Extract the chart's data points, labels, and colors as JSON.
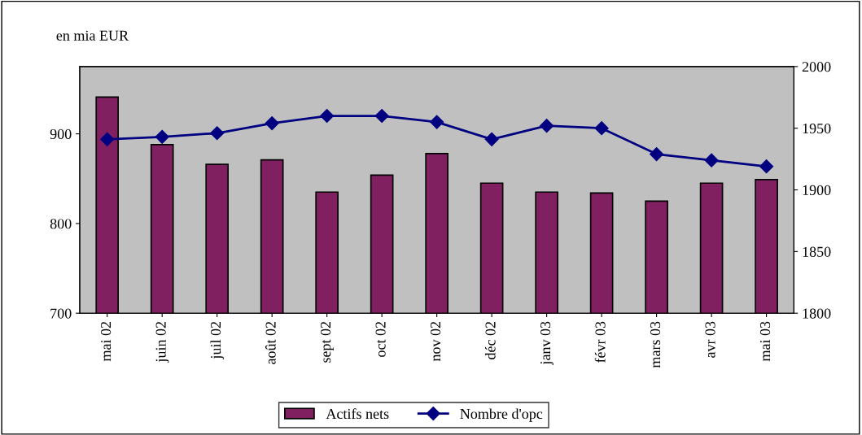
{
  "chart_data": {
    "type": "bar",
    "ylabel": "en mia EUR",
    "categories": [
      "mai 02",
      "juin 02",
      "juil 02",
      "août 02",
      "sept 02",
      "oct 02",
      "nov 02",
      "déc 02",
      "janv 03",
      "févr 03",
      "mars 03",
      "avr 03",
      "mai 03"
    ],
    "series": [
      {
        "name": "Actifs nets",
        "color": "#802060",
        "values": [
          941,
          888,
          866,
          871,
          835,
          854,
          878,
          845,
          835,
          834,
          825,
          845,
          849
        ]
      },
      {
        "name": "Nombre d'opc",
        "type": "line",
        "axis": "y2",
        "color": "#000080",
        "marker": "diamond",
        "values": [
          1941,
          1943,
          1946,
          1954,
          1960,
          1960,
          1955,
          1941,
          1952,
          1950,
          1929,
          1924,
          1919
        ]
      }
    ],
    "ylim": [
      700,
      975
    ],
    "yticks": [
      700,
      800,
      900
    ],
    "y2lim": [
      1800,
      2000
    ],
    "y2ticks": [
      1800,
      1850,
      1900,
      1950,
      2000
    ],
    "grid": false,
    "legend": "bottom"
  }
}
